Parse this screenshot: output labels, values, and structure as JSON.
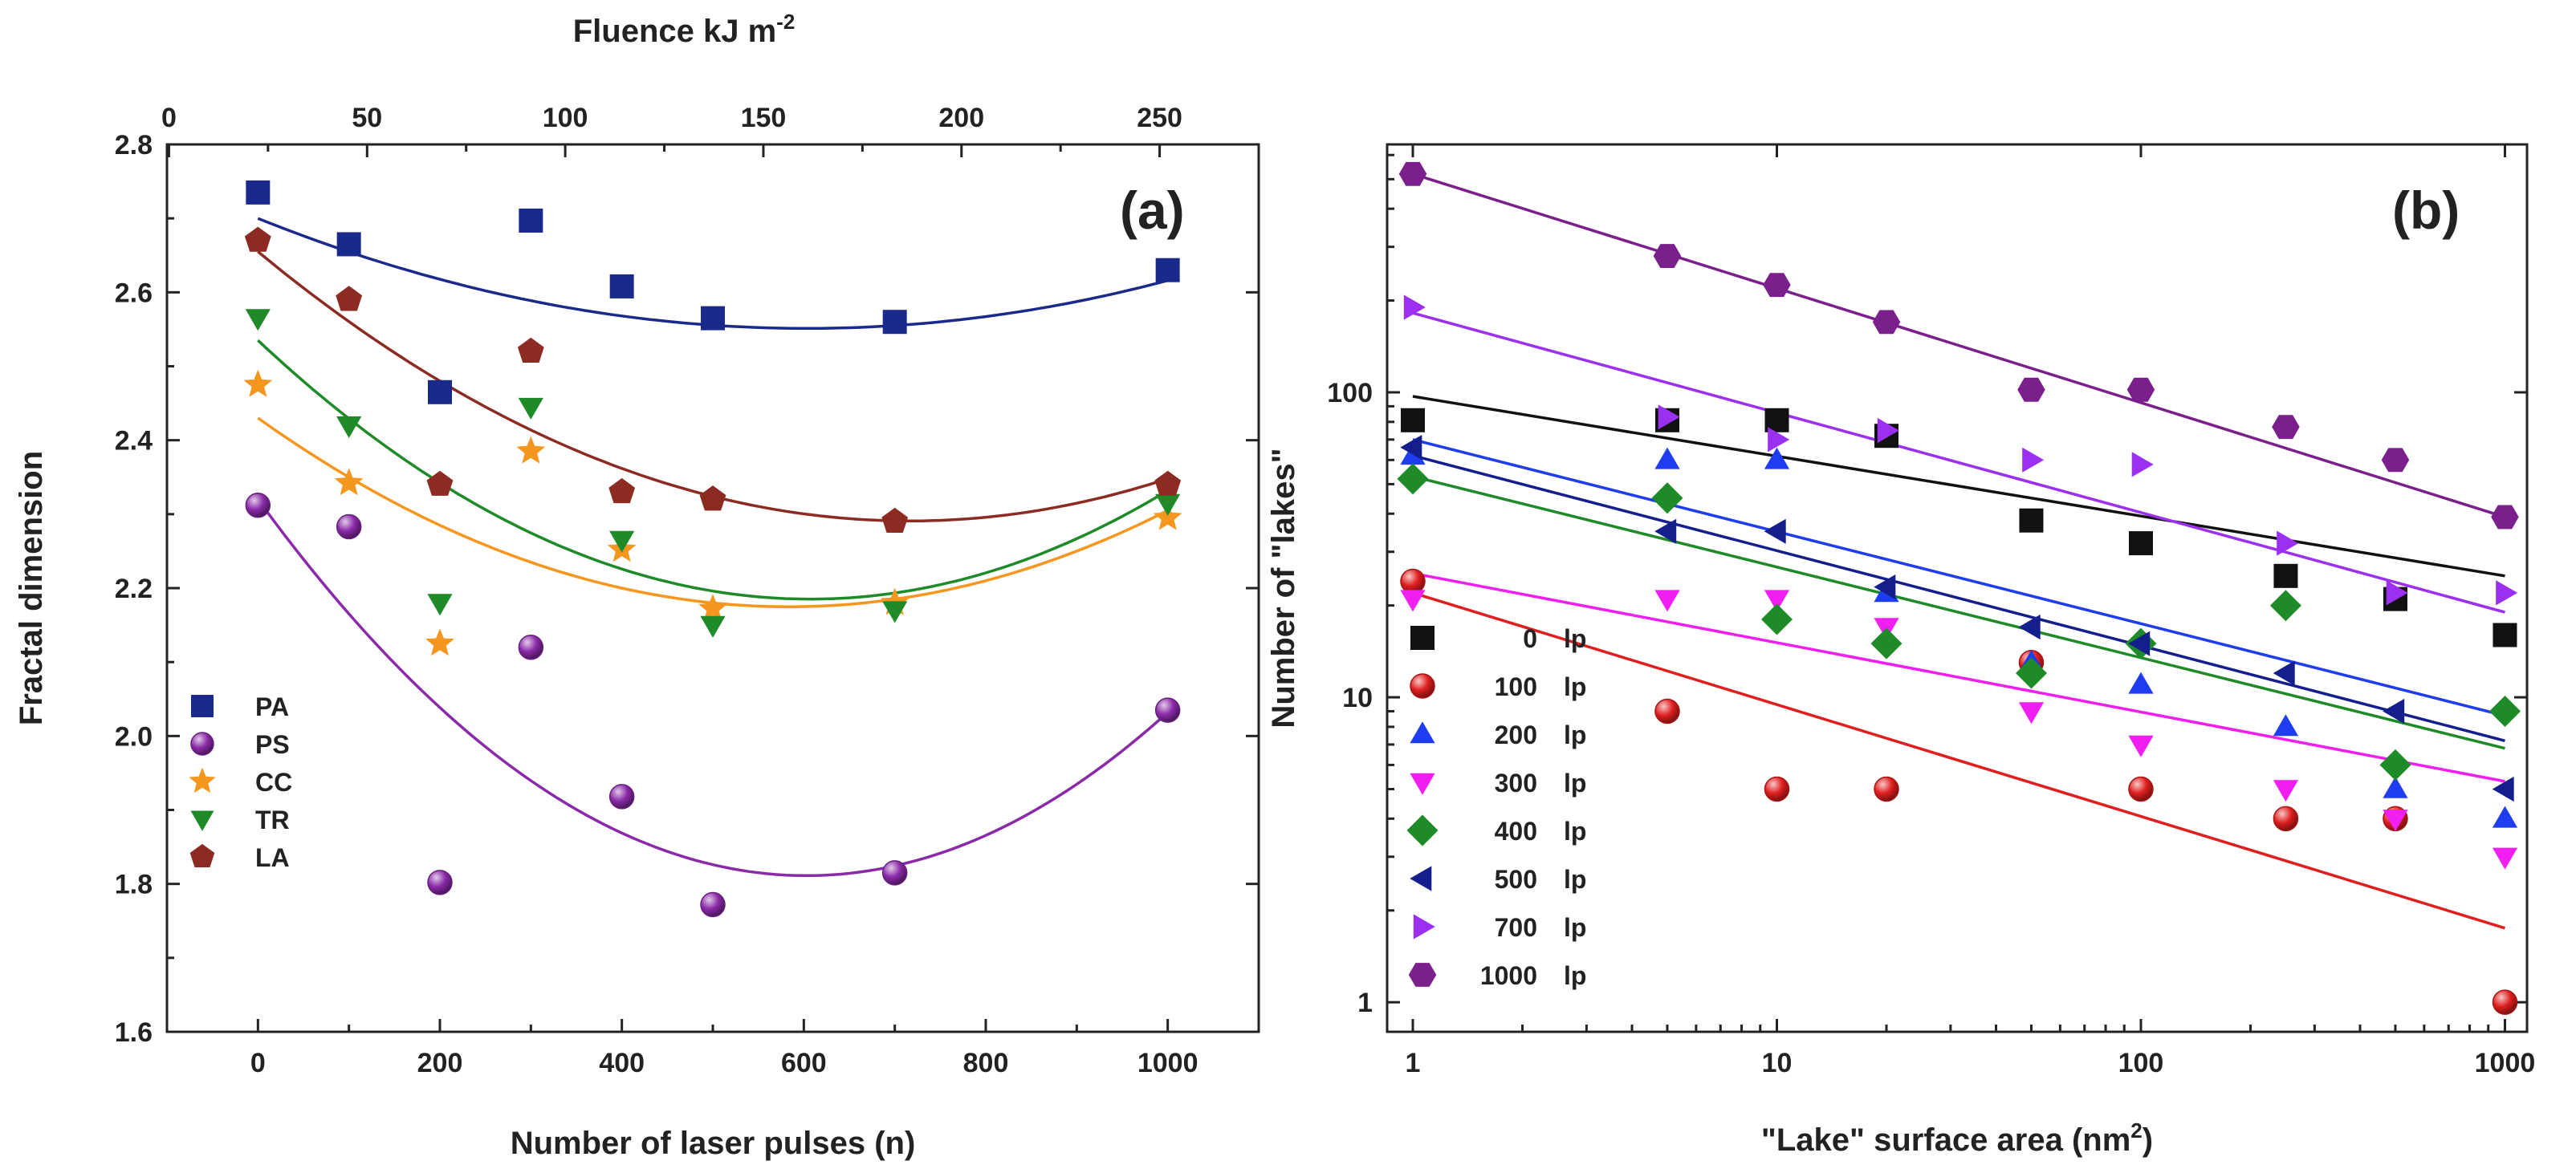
{
  "chart_data": [
    {
      "panel": "(a)",
      "type": "scatter",
      "xlabel": "Number of laser pulses (n)",
      "ylabel": "Fractal dimension",
      "x2label": "Fluence kJ m",
      "x2label_exponent": "-2",
      "xlim": [
        -100,
        1100
      ],
      "ylim": [
        1.6,
        2.8
      ],
      "x2lim": [
        -0.5,
        275
      ],
      "xticks": [
        0,
        200,
        400,
        600,
        800,
        1000
      ],
      "xtick_labels": [
        "0",
        "200",
        "400",
        "600",
        "800",
        "1000"
      ],
      "yticks": [
        1.6,
        1.8,
        2.0,
        2.2,
        2.4,
        2.6,
        2.8
      ],
      "ytick_labels": [
        "1.6",
        "1.8",
        "2.0",
        "2.2",
        "2.4",
        "2.6",
        "2.8"
      ],
      "x2ticks": [
        0,
        50,
        100,
        150,
        200,
        250
      ],
      "x2tick_labels": [
        "0",
        "50",
        "100",
        "150",
        "200",
        "250"
      ],
      "legend_position": "bottom-left",
      "series": [
        {
          "name": "PA",
          "marker": "square",
          "color": "#1a2a8c",
          "x": [
            0,
            100,
            200,
            300,
            400,
            500,
            700,
            1000
          ],
          "y": [
            2.735,
            2.665,
            2.465,
            2.697,
            2.608,
            2.565,
            2.56,
            2.63
          ],
          "fit": [
            2.7,
            -0.000494,
            4.1e-07
          ]
        },
        {
          "name": "PS",
          "marker": "sphere",
          "color": "#8a2aa8",
          "x": [
            0,
            100,
            200,
            300,
            400,
            500,
            700,
            1000
          ],
          "y": [
            2.312,
            2.283,
            1.802,
            2.12,
            1.918,
            1.772,
            1.815,
            2.035
          ],
          "fit": [
            2.32,
            -0.001688,
            1.4e-06
          ]
        },
        {
          "name": "CC",
          "marker": "star",
          "color": "#f5961e",
          "x": [
            0,
            100,
            200,
            300,
            400,
            500,
            700,
            1000
          ],
          "y": [
            2.475,
            2.342,
            2.125,
            2.385,
            2.252,
            2.172,
            2.18,
            2.295
          ],
          "fit": [
            2.43,
            -0.000875,
            7.5e-07
          ]
        },
        {
          "name": "TR",
          "marker": "triangle-down",
          "color": "#1e8a28",
          "x": [
            0,
            100,
            200,
            300,
            400,
            500,
            700,
            1000
          ],
          "y": [
            2.565,
            2.42,
            2.18,
            2.445,
            2.265,
            2.15,
            2.17,
            2.315
          ],
          "fit": [
            2.535,
            -0.001153,
            9.5e-07
          ]
        },
        {
          "name": "LA",
          "marker": "pentagon",
          "color": "#8b2b22",
          "x": [
            0,
            100,
            200,
            300,
            400,
            500,
            700,
            1000
          ],
          "y": [
            2.67,
            2.59,
            2.34,
            2.52,
            2.33,
            2.32,
            2.29,
            2.34
          ],
          "fit": [
            2.655,
            -0.001017,
            7.1e-07
          ]
        }
      ]
    },
    {
      "panel": "(b)",
      "type": "scatter",
      "xscale": "log",
      "yscale": "log",
      "xlabel": "\"Lake\" surface area (nm",
      "xlabel_exponent": "2",
      "xlabel_close": ")",
      "ylabel": "Number of \"lakes\"",
      "xlim": [
        0.85,
        1150
      ],
      "ylim": [
        0.8,
        650
      ],
      "xticks": [
        1,
        10,
        100,
        1000
      ],
      "xtick_labels": [
        "1",
        "10",
        "100",
        "1000"
      ],
      "yticks": [
        1,
        10,
        100
      ],
      "ytick_labels": [
        "1",
        "10",
        "100"
      ],
      "legend_position": "bottom-left",
      "series": [
        {
          "name": "0",
          "unit": "lp",
          "marker": "square",
          "color": "#111111",
          "x": [
            1,
            5,
            10,
            20,
            50,
            100,
            250,
            500,
            1000
          ],
          "y": [
            81,
            81,
            81,
            72,
            38,
            32,
            25,
            21,
            16
          ],
          "fit": [
            97,
            25
          ]
        },
        {
          "name": "100",
          "unit": "lp",
          "marker": "sphere",
          "color": "#e01e1e",
          "x": [
            1,
            5,
            10,
            20,
            50,
            100,
            250,
            500,
            1000
          ],
          "y": [
            24,
            9,
            5,
            5,
            13,
            5,
            4,
            4,
            1
          ],
          "fit": [
            22,
            1.75
          ]
        },
        {
          "name": "200",
          "unit": "lp",
          "marker": "triangle-up",
          "color": "#1e3cf0",
          "x": [
            1,
            5,
            10,
            20,
            50,
            100,
            250,
            500,
            1000
          ],
          "y": [
            62,
            60,
            60,
            22,
            13,
            11,
            8,
            5,
            4
          ],
          "fit": [
            70,
            8.7
          ]
        },
        {
          "name": "300",
          "unit": "lp",
          "marker": "triangle-down",
          "color": "#f01ef0",
          "x": [
            1,
            5,
            10,
            20,
            50,
            100,
            250,
            500,
            1000
          ],
          "y": [
            21,
            21,
            21,
            17,
            9,
            7,
            5,
            4,
            3
          ],
          "fit": [
            25.5,
            5.3
          ]
        },
        {
          "name": "400",
          "unit": "lp",
          "marker": "diamond",
          "color": "#1e8a28",
          "x": [
            1,
            5,
            10,
            20,
            50,
            100,
            250,
            500,
            1000
          ],
          "y": [
            52,
            45,
            18,
            15,
            12,
            15,
            20,
            6,
            9
          ],
          "fit": [
            53,
            6.8
          ]
        },
        {
          "name": "500",
          "unit": "lp",
          "marker": "triangle-left",
          "color": "#141e8c",
          "x": [
            1,
            5,
            10,
            20,
            50,
            100,
            250,
            500,
            1000
          ],
          "y": [
            66,
            35,
            35,
            23,
            17,
            15,
            12,
            9,
            5
          ],
          "fit": [
            62,
            7.2
          ]
        },
        {
          "name": "700",
          "unit": "lp",
          "marker": "triangle-right",
          "color": "#9b30f0",
          "x": [
            1,
            5,
            10,
            20,
            50,
            100,
            250,
            500,
            1000
          ],
          "y": [
            190,
            83,
            70,
            75,
            60,
            58,
            32,
            22,
            22
          ],
          "fit": [
            182,
            19
          ]
        },
        {
          "name": "1000",
          "unit": "lp",
          "marker": "hexagon",
          "color": "#7a1f8c",
          "x": [
            1,
            5,
            10,
            20,
            50,
            100,
            250,
            500,
            1000
          ],
          "y": [
            520,
            280,
            225,
            170,
            102,
            102,
            77,
            60,
            39
          ],
          "fit": [
            520,
            39
          ]
        }
      ]
    }
  ]
}
